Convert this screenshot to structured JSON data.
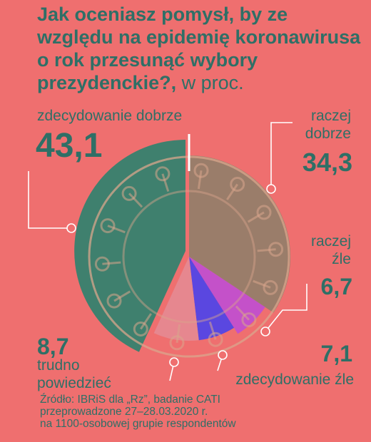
{
  "colors": {
    "background": "#ef6f6f",
    "text": "#2f6f66",
    "slice_zdecydowanie_dobrze": "#3f806e",
    "slice_raczej_dobrze": "#9a7d6a",
    "slice_raczej_zle": "#c451c9",
    "slice_zdecydowanie_zle": "#5a47e0",
    "slice_trudno_powiedziec": "#e6878f",
    "outline": "#d9a58c"
  },
  "chart_data": {
    "type": "pie",
    "title_bold": "Jak oceniasz pomysł, by ze względu na epidemię koronawirusa o rok przesunąć wybory prezydenckie?,",
    "title_unit": " w proc.",
    "slices": [
      {
        "label": "zdecydowanie dobrze",
        "value": 43.1,
        "value_text": "43,1"
      },
      {
        "label_line1": "raczej",
        "label_line2": "dobrze",
        "value": 34.3,
        "value_text": "34,3"
      },
      {
        "label_line1": "raczej",
        "label_line2": "źle",
        "value": 6.7,
        "value_text": "6,7"
      },
      {
        "label": "zdecydowanie źle",
        "value": 7.1,
        "value_text": "7,1"
      },
      {
        "label_line1": "trudno",
        "label_line2": "powiedzieć",
        "value": 8.7,
        "value_text": "8,7"
      }
    ]
  },
  "source": {
    "line1": "Źródło: IBRiS dla „Rz”, badanie CATI",
    "line2": "przeprowadzone 27–28.03.2020 r.",
    "line3": "na 1100-osobowej grupie respondentów"
  }
}
